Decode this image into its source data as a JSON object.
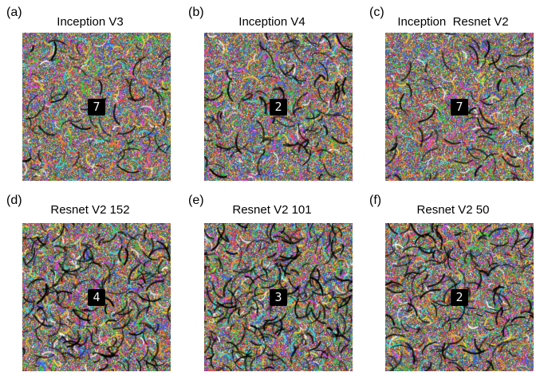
{
  "panels": [
    {
      "letter": "(a)",
      "title": "Inception V3",
      "digit": "7",
      "noise_density": 0.55,
      "dark_strokes": 0.1
    },
    {
      "letter": "(b)",
      "title": "Inception V4",
      "digit": "2",
      "noise_density": 0.6,
      "dark_strokes": 0.18
    },
    {
      "letter": "(c)",
      "title": "Inception  Resnet V2",
      "digit": "7",
      "noise_density": 0.5,
      "dark_strokes": 0.12
    },
    {
      "letter": "(d)",
      "title": "Resnet V2 152",
      "digit": "4",
      "noise_density": 0.65,
      "dark_strokes": 0.32
    },
    {
      "letter": "(e)",
      "title": "Resnet V2 101",
      "digit": "3",
      "noise_density": 0.65,
      "dark_strokes": 0.35
    },
    {
      "letter": "(f)",
      "title": "Resnet V2 50",
      "digit": "2",
      "noise_density": 0.6,
      "dark_strokes": 0.25
    }
  ],
  "noise_colors": [
    "#ff3a3a",
    "#2fd33a",
    "#3a5bff",
    "#ffe12b",
    "#e83be8",
    "#2fe6e6",
    "#ffffff",
    "#ff9a2b",
    "#8a8a8a"
  ]
}
